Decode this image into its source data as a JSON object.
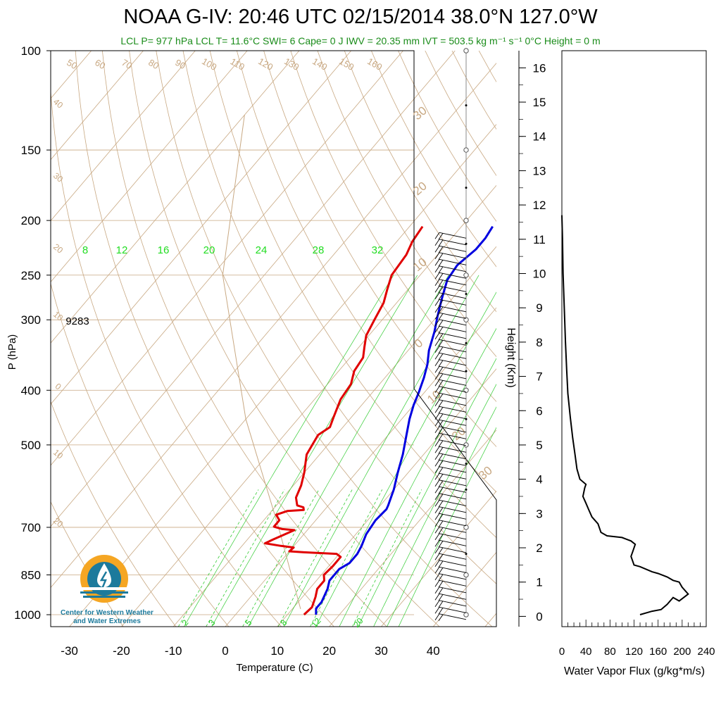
{
  "title": "NOAA G-IV: 20:46 UTC 02/15/2014  38.0°N 127.0°W",
  "subtitle": "LCL P= 977 hPa  LCL T= 11.6°C  SWI= 6  Cape= 0 J  IWV = 20.35 mm  IVT = 503.5 kg m⁻¹ s⁻¹  0°C Height = 0 m",
  "logo": {
    "line1": "Center for Western Weather",
    "line2": "and Water Extremes"
  },
  "colors": {
    "temperature": "#e00000",
    "dewpoint": "#0000e0",
    "dry_adiabat": "#c8a882",
    "mixing_ratio": "#33cc33",
    "lcl_text": "#1a8c1a",
    "logo_orange": "#f5a623",
    "logo_blue": "#1c7a9c"
  },
  "chart_data": [
    {
      "type": "line",
      "name": "skew-t",
      "xlabel": "Temperature (C)",
      "ylabel": "P (hPa)",
      "xlim": [
        -34,
        50
      ],
      "ylim": [
        1050,
        100
      ],
      "y_scale": "log",
      "x_ticks": [
        -30,
        -20,
        -10,
        0,
        10,
        20,
        30,
        40
      ],
      "y_ticks": [
        100,
        150,
        200,
        250,
        300,
        400,
        500,
        700,
        850,
        1000
      ],
      "annotation": "9283",
      "dry_adiabat_labels": [
        "50",
        "60",
        "70",
        "80",
        "90",
        "100",
        "110",
        "120",
        "130",
        "140",
        "150",
        "160"
      ],
      "isotherm_labels": [
        "40",
        "30",
        "20",
        "10",
        "0",
        "10",
        "20",
        "30"
      ],
      "isotherm_right_labels": [
        "30",
        "20",
        "10",
        "0",
        "10",
        "20",
        "30"
      ],
      "mixing_ratio_labels_top": [
        "8",
        "12",
        "16",
        "20",
        "24",
        "28",
        "32"
      ],
      "mixing_ratio_labels_bottom": [
        "2",
        "3",
        "5",
        "8",
        "12",
        "20"
      ],
      "series": [
        {
          "key": "temperature",
          "points": [
            [
              13.2,
              1000
            ],
            [
              13.5,
              970
            ],
            [
              12.5,
              930
            ],
            [
              11.5,
              900
            ],
            [
              11.5,
              870
            ],
            [
              10.5,
              850
            ],
            [
              10.8,
              820
            ],
            [
              10.8,
              790
            ],
            [
              9.5,
              780
            ],
            [
              3,
              775
            ],
            [
              0,
              772
            ],
            [
              0.2,
              760
            ],
            [
              -2.5,
              755
            ],
            [
              -6,
              747
            ],
            [
              -5,
              735
            ],
            [
              -2.5,
              708
            ],
            [
              -5,
              705
            ],
            [
              -7,
              698
            ],
            [
              -7,
              680
            ],
            [
              -8.5,
              665
            ],
            [
              -7,
              655
            ],
            [
              -4,
              652
            ],
            [
              -4.5,
              645
            ],
            [
              -6,
              640
            ],
            [
              -7.5,
              620
            ],
            [
              -8.5,
              590
            ],
            [
              -10,
              560
            ],
            [
              -12.5,
              520
            ],
            [
              -13.5,
              480
            ],
            [
              -12.5,
              465
            ],
            [
              -13.5,
              445
            ],
            [
              -15,
              415
            ],
            [
              -15.5,
              390
            ],
            [
              -17,
              370
            ],
            [
              -17.5,
              350
            ],
            [
              -19,
              335
            ],
            [
              -20.5,
              320
            ],
            [
              -21.5,
              300
            ],
            [
              -22.5,
              280
            ],
            [
              -24,
              265
            ],
            [
              -25.5,
              250
            ],
            [
              -26,
              230
            ],
            [
              -27,
              218
            ],
            [
              -27.5,
              205
            ]
          ]
        },
        {
          "key": "dewpoint",
          "points": [
            [
              15.5,
              1000
            ],
            [
              14.5,
              975
            ],
            [
              14.5,
              950
            ],
            [
              13.5,
              900
            ],
            [
              12.5,
              870
            ],
            [
              12.5,
              830
            ],
            [
              13.5,
              810
            ],
            [
              13.5,
              780
            ],
            [
              13,
              755
            ],
            [
              12,
              720
            ],
            [
              11.5,
              680
            ],
            [
              11.8,
              650
            ],
            [
              11.5,
              640
            ],
            [
              10,
              600
            ],
            [
              8,
              560
            ],
            [
              6,
              520
            ],
            [
              3.5,
              480
            ],
            [
              1.5,
              450
            ],
            [
              0,
              425
            ],
            [
              -1,
              405
            ],
            [
              -2.5,
              380
            ],
            [
              -4,
              360
            ],
            [
              -6,
              340
            ],
            [
              -8,
              315
            ],
            [
              -10,
              295
            ],
            [
              -12,
              275
            ],
            [
              -14,
              255
            ],
            [
              -14.5,
              240
            ],
            [
              -13.5,
              225
            ],
            [
              -13.5,
              215
            ],
            [
              -14,
              205
            ]
          ]
        }
      ],
      "wind_barbs": "profile 1000–210 hPa, mostly westerly/southwesterly"
    },
    {
      "type": "line",
      "name": "water-vapor-flux",
      "xlabel": "Water Vapor Flux (g/kg*m/s)",
      "ylabel": "Height (Km)",
      "xlim": [
        0,
        240
      ],
      "ylim": [
        -0.3,
        16.5
      ],
      "x_ticks": [
        0,
        40,
        80,
        120,
        160,
        200,
        240
      ],
      "y_ticks": [
        0,
        1,
        2,
        3,
        4,
        5,
        6,
        7,
        8,
        9,
        10,
        11,
        12,
        13,
        14,
        15,
        16
      ],
      "points": [
        [
          130,
          0.05
        ],
        [
          150,
          0.15
        ],
        [
          165,
          0.2
        ],
        [
          175,
          0.35
        ],
        [
          185,
          0.55
        ],
        [
          195,
          0.45
        ],
        [
          210,
          0.65
        ],
        [
          200,
          0.85
        ],
        [
          195,
          1.0
        ],
        [
          185,
          1.05
        ],
        [
          175,
          1.15
        ],
        [
          160,
          1.25
        ],
        [
          150,
          1.3
        ],
        [
          130,
          1.45
        ],
        [
          120,
          1.5
        ],
        [
          115,
          1.75
        ],
        [
          118,
          1.9
        ],
        [
          122,
          2.1
        ],
        [
          115,
          2.2
        ],
        [
          100,
          2.3
        ],
        [
          75,
          2.35
        ],
        [
          65,
          2.45
        ],
        [
          60,
          2.7
        ],
        [
          50,
          2.9
        ],
        [
          45,
          3.1
        ],
        [
          40,
          3.3
        ],
        [
          35,
          3.5
        ],
        [
          38,
          3.75
        ],
        [
          40,
          3.85
        ],
        [
          30,
          4.0
        ],
        [
          25,
          4.3
        ],
        [
          22,
          4.7
        ],
        [
          18,
          5.2
        ],
        [
          14,
          5.8
        ],
        [
          10,
          6.5
        ],
        [
          8,
          7.2
        ],
        [
          6,
          8.0
        ],
        [
          4,
          9.0
        ],
        [
          2,
          10.0
        ],
        [
          1,
          11.0
        ],
        [
          0,
          11.7
        ]
      ]
    }
  ]
}
